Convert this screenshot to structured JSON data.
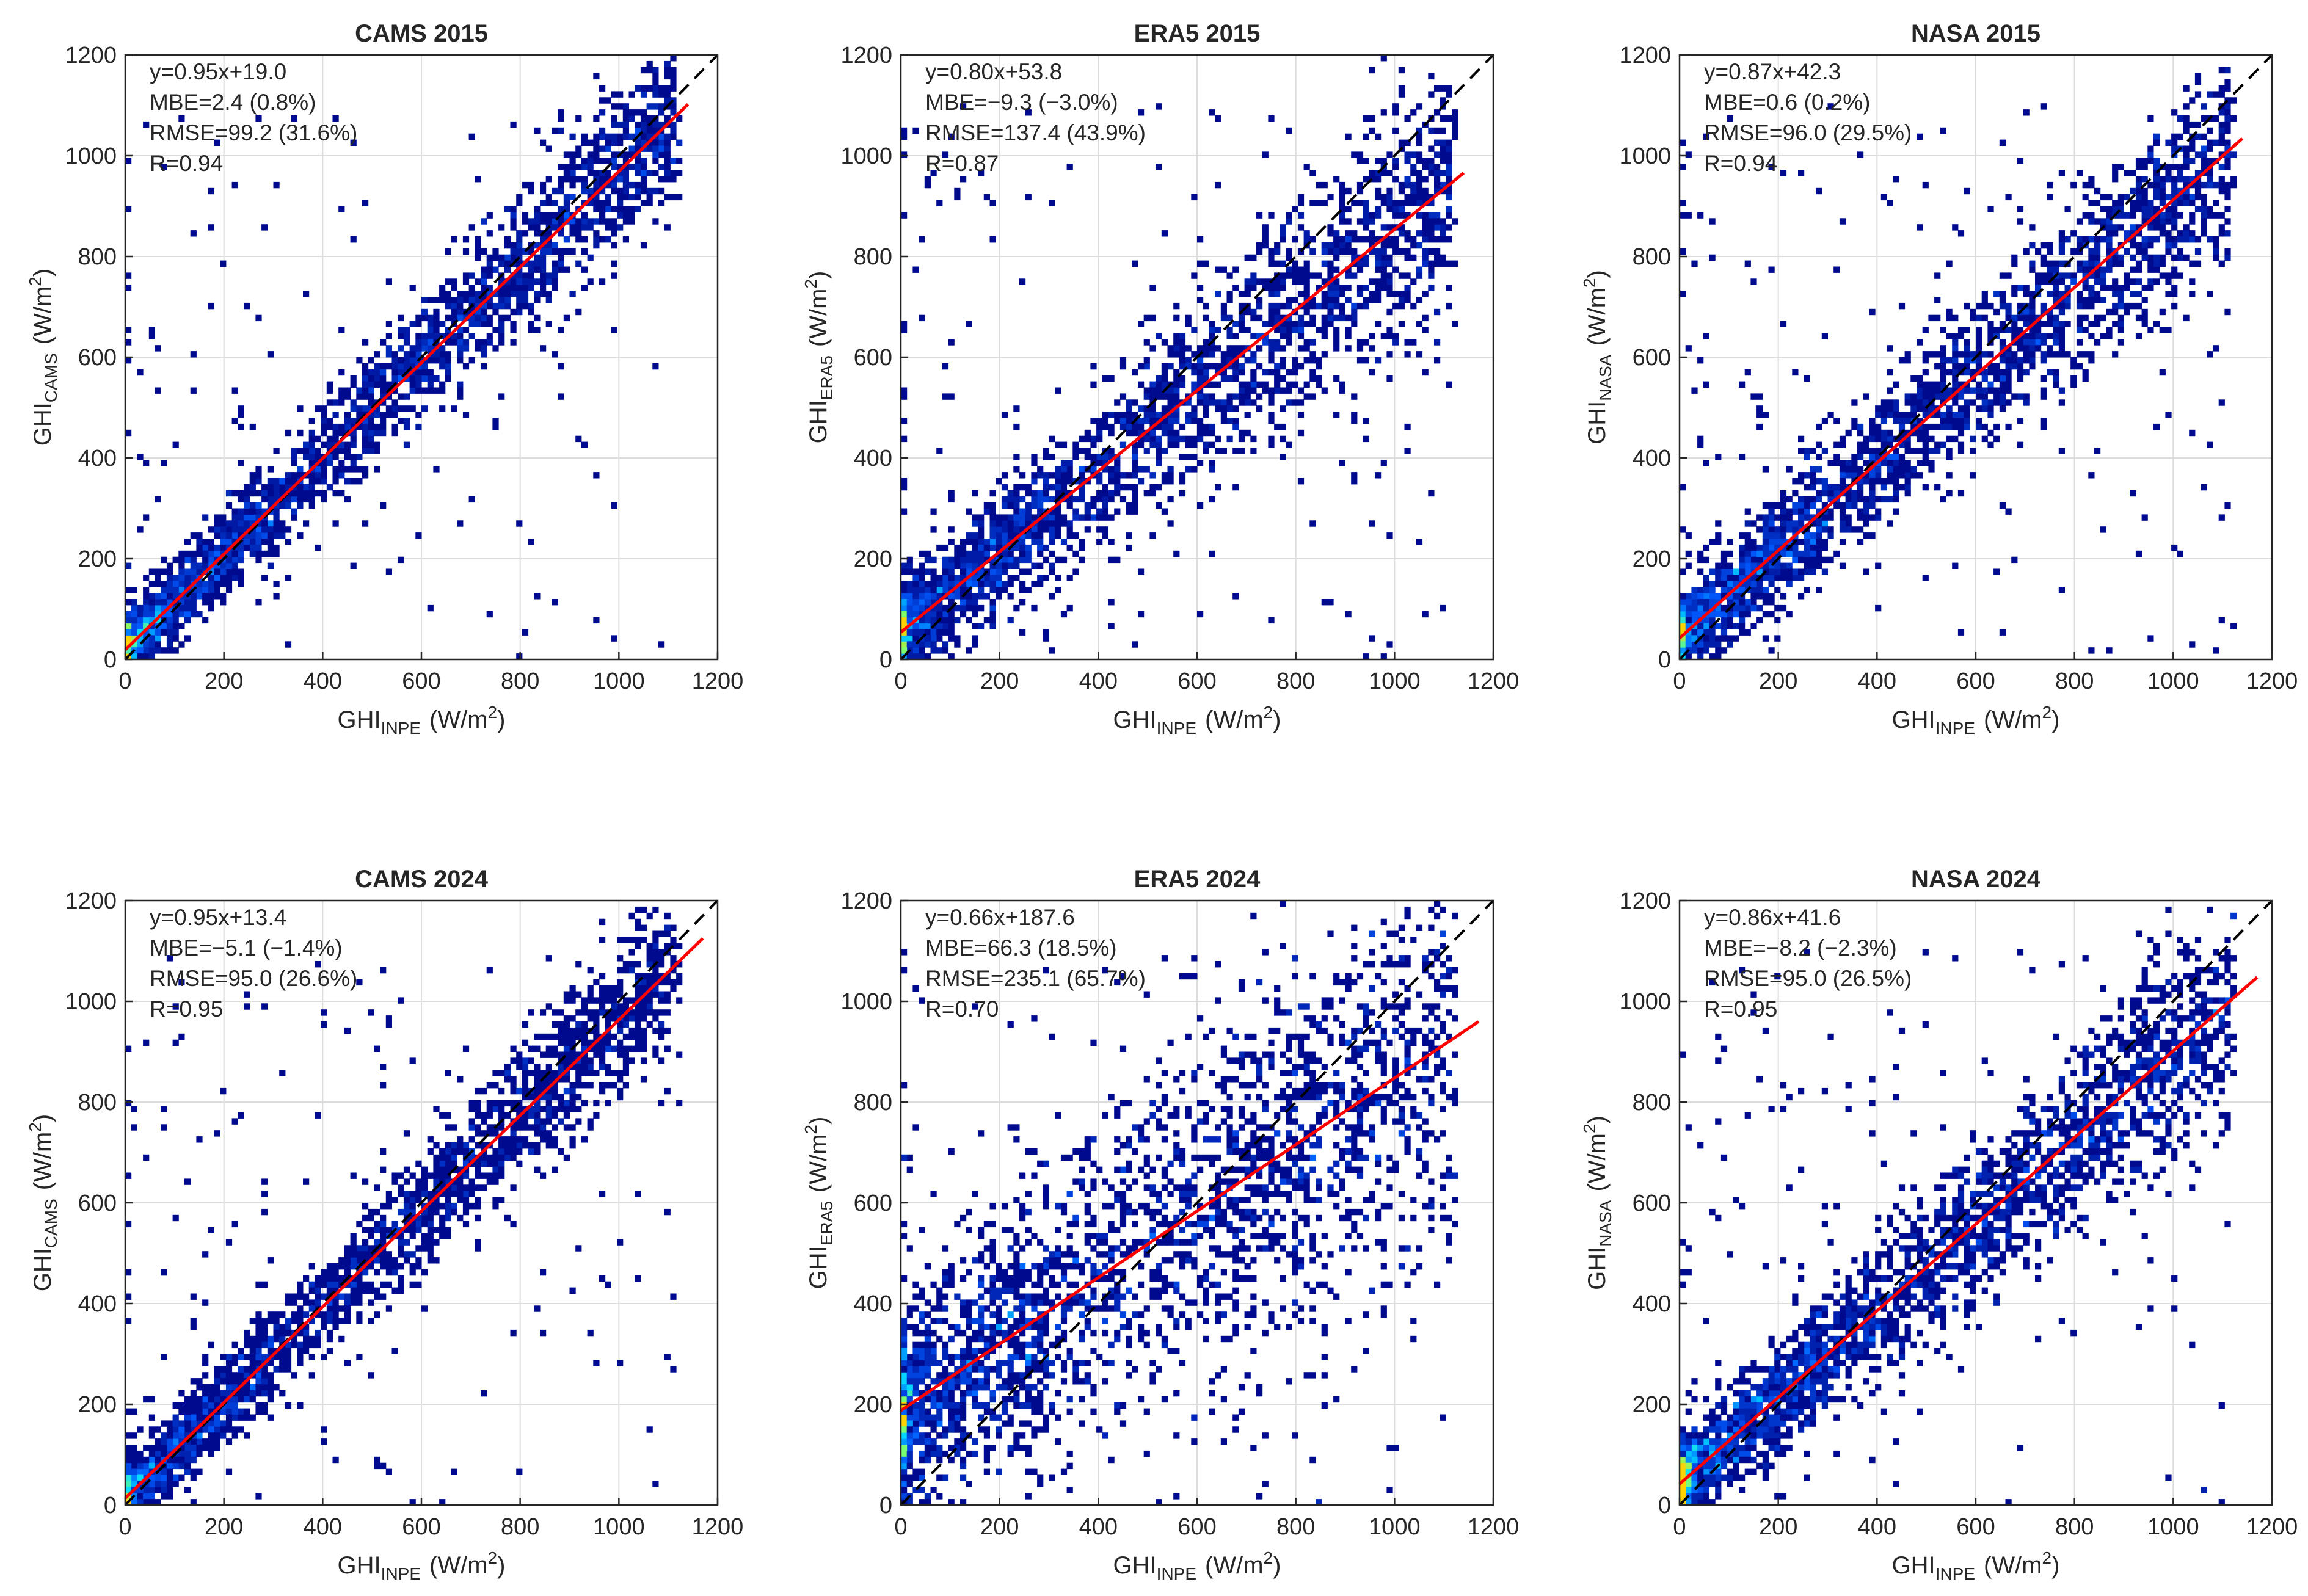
{
  "chart_data": [
    {
      "type": "heatmap",
      "title": "CAMS 2015",
      "xlabel": {
        "base": "GHI",
        "sub": "INPE",
        "unit": "(W/m",
        "sup": "2",
        "close": ")"
      },
      "ylabel": {
        "base": "GHI",
        "sub": "CAMS",
        "unit": "(W/m",
        "sup": "2",
        "close": ")"
      },
      "xlim": [
        0,
        1200
      ],
      "ylim": [
        0,
        1200
      ],
      "xticks": [
        "0",
        "200",
        "400",
        "600",
        "800",
        "1000",
        "1200"
      ],
      "yticks": [
        "0",
        "200",
        "400",
        "600",
        "800",
        "1000",
        "1200"
      ],
      "grid": true,
      "fit": {
        "slope": 0.95,
        "intercept": 19.0,
        "x_end": 1140
      },
      "identity_line": true,
      "stats": [
        "y=0.95x+19.0",
        "MBE=2.4 (0.8%)",
        "RMSE=99.2 (31.6%)",
        "R=0.94"
      ],
      "colors": {
        "low": "#000a8f",
        "high": "#ffd200",
        "fit": "#ff0000",
        "identity": "#000000"
      }
    },
    {
      "type": "heatmap",
      "title": "ERA5 2015",
      "xlabel": {
        "base": "GHI",
        "sub": "INPE",
        "unit": "(W/m",
        "sup": "2",
        "close": ")"
      },
      "ylabel": {
        "base": "GHI",
        "sub": "ERA5",
        "unit": "(W/m",
        "sup": "2",
        "close": ")"
      },
      "xlim": [
        0,
        1200
      ],
      "ylim": [
        0,
        1200
      ],
      "xticks": [
        "0",
        "200",
        "400",
        "600",
        "800",
        "1000",
        "1200"
      ],
      "yticks": [
        "0",
        "200",
        "400",
        "600",
        "800",
        "1000",
        "1200"
      ],
      "grid": true,
      "fit": {
        "slope": 0.8,
        "intercept": 53.8,
        "x_end": 1140
      },
      "identity_line": true,
      "stats": [
        "y=0.80x+53.8",
        "MBE=−9.3 (−3.0%)",
        "RMSE=137.4 (43.9%)",
        "R=0.87"
      ],
      "colors": {
        "low": "#000a8f",
        "high": "#ffd200",
        "fit": "#ff0000",
        "identity": "#000000"
      }
    },
    {
      "type": "heatmap",
      "title": "NASA 2015",
      "xlabel": {
        "base": "GHI",
        "sub": "INPE",
        "unit": "(W/m",
        "sup": "2",
        "close": ")"
      },
      "ylabel": {
        "base": "GHI",
        "sub": "NASA",
        "unit": "(W/m",
        "sup": "2",
        "close": ")"
      },
      "xlim": [
        0,
        1200
      ],
      "ylim": [
        0,
        1200
      ],
      "xticks": [
        "0",
        "200",
        "400",
        "600",
        "800",
        "1000",
        "1200"
      ],
      "yticks": [
        "0",
        "200",
        "400",
        "600",
        "800",
        "1000",
        "1200"
      ],
      "grid": true,
      "fit": {
        "slope": 0.87,
        "intercept": 42.3,
        "x_end": 1140
      },
      "identity_line": true,
      "stats": [
        "y=0.87x+42.3",
        "MBE=0.6 (0.2%)",
        "RMSE=96.0 (29.5%)",
        "R=0.94"
      ],
      "colors": {
        "low": "#000a8f",
        "high": "#ffd200",
        "fit": "#ff0000",
        "identity": "#000000"
      }
    },
    {
      "type": "heatmap",
      "title": "CAMS 2024",
      "xlabel": {
        "base": "GHI",
        "sub": "INPE",
        "unit": "(W/m",
        "sup": "2",
        "close": ")"
      },
      "ylabel": {
        "base": "GHI",
        "sub": "CAMS",
        "unit": "(W/m",
        "sup": "2",
        "close": ")"
      },
      "xlim": [
        0,
        1200
      ],
      "ylim": [
        0,
        1200
      ],
      "xticks": [
        "0",
        "200",
        "400",
        "600",
        "800",
        "1000",
        "1200"
      ],
      "yticks": [
        "0",
        "200",
        "400",
        "600",
        "800",
        "1000",
        "1200"
      ],
      "grid": true,
      "fit": {
        "slope": 0.95,
        "intercept": 13.4,
        "x_end": 1170
      },
      "identity_line": true,
      "stats": [
        "y=0.95x+13.4",
        "MBE=−5.1 (−1.4%)",
        "RMSE=95.0 (26.6%)",
        "R=0.95"
      ],
      "colors": {
        "low": "#000a8f",
        "high": "#ffd200",
        "fit": "#ff0000",
        "identity": "#000000"
      }
    },
    {
      "type": "heatmap",
      "title": "ERA5 2024",
      "xlabel": {
        "base": "GHI",
        "sub": "INPE",
        "unit": "(W/m",
        "sup": "2",
        "close": ")"
      },
      "ylabel": {
        "base": "GHI",
        "sub": "ERA5",
        "unit": "(W/m",
        "sup": "2",
        "close": ")"
      },
      "xlim": [
        0,
        1200
      ],
      "ylim": [
        0,
        1200
      ],
      "xticks": [
        "0",
        "200",
        "400",
        "600",
        "800",
        "1000",
        "1200"
      ],
      "yticks": [
        "0",
        "200",
        "400",
        "600",
        "800",
        "1000",
        "1200"
      ],
      "grid": true,
      "fit": {
        "slope": 0.66,
        "intercept": 187.6,
        "x_end": 1170
      },
      "identity_line": true,
      "stats": [
        "y=0.66x+187.6",
        "MBE=66.3 (18.5%)",
        "RMSE=235.1 (65.7%)",
        "R=0.70"
      ],
      "colors": {
        "low": "#000a8f",
        "high": "#ffd200",
        "fit": "#ff0000",
        "identity": "#000000"
      }
    },
    {
      "type": "heatmap",
      "title": "NASA 2024",
      "xlabel": {
        "base": "GHI",
        "sub": "INPE",
        "unit": "(W/m",
        "sup": "2",
        "close": ")"
      },
      "ylabel": {
        "base": "GHI",
        "sub": "NASA",
        "unit": "(W/m",
        "sup": "2",
        "close": ")"
      },
      "xlim": [
        0,
        1200
      ],
      "ylim": [
        0,
        1200
      ],
      "xticks": [
        "0",
        "200",
        "400",
        "600",
        "800",
        "1000",
        "1200"
      ],
      "yticks": [
        "0",
        "200",
        "400",
        "600",
        "800",
        "1000",
        "1200"
      ],
      "grid": true,
      "fit": {
        "slope": 0.86,
        "intercept": 41.6,
        "x_end": 1170
      },
      "identity_line": true,
      "stats": [
        "y=0.86x+41.6",
        "MBE=−8.2 (−2.3%)",
        "RMSE=95.0 (26.5%)",
        "R=0.95"
      ],
      "colors": {
        "low": "#000a8f",
        "high": "#ffd200",
        "fit": "#ff0000",
        "identity": "#000000"
      }
    }
  ]
}
